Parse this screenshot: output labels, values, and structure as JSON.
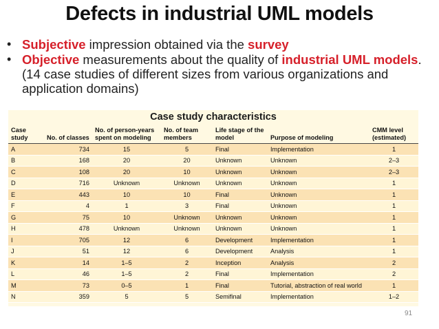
{
  "slide": {
    "title": "Defects in industrial UML models",
    "bullets": [
      {
        "parts": [
          {
            "text": "Subjective",
            "emphasis": true
          },
          {
            "text": " impression obtained via the ",
            "emphasis": false
          },
          {
            "text": "survey",
            "emphasis": true
          }
        ]
      },
      {
        "parts": [
          {
            "text": "Objective",
            "emphasis": true
          },
          {
            "text": " measurements about the quality of ",
            "emphasis": false
          },
          {
            "text": "industrial UML models",
            "emphasis": true
          },
          {
            "text": ". (14 case studies of different sizes from various organizations and application domains)",
            "emphasis": false
          }
        ]
      }
    ],
    "page_number": "91"
  },
  "table": {
    "title": "Case study characteristics",
    "columns": [
      "Case study",
      "No. of classes",
      "No. of person-years spent on modeling",
      "No. of team members",
      "Life stage of the model",
      "Purpose of modeling",
      "CMM level (estimated)"
    ],
    "rows": [
      [
        "A",
        "734",
        "15",
        "5",
        "Final",
        "Implementation",
        "1"
      ],
      [
        "B",
        "168",
        "20",
        "20",
        "Unknown",
        "Unknown",
        "2–3"
      ],
      [
        "C",
        "108",
        "20",
        "10",
        "Unknown",
        "Unknown",
        "2–3"
      ],
      [
        "D",
        "716",
        "Unknown",
        "Unknown",
        "Unknown",
        "Unknown",
        "1"
      ],
      [
        "E",
        "443",
        "10",
        "10",
        "Final",
        "Unknown",
        "1"
      ],
      [
        "F",
        "4",
        "1",
        "3",
        "Final",
        "Unknown",
        "1"
      ],
      [
        "G",
        "75",
        "10",
        "Unknown",
        "Unknown",
        "Unknown",
        "1"
      ],
      [
        "H",
        "478",
        "Unknown",
        "Unknown",
        "Unknown",
        "Unknown",
        "1"
      ],
      [
        "I",
        "705",
        "12",
        "6",
        "Development",
        "Implementation",
        "1"
      ],
      [
        "J",
        "51",
        "12",
        "6",
        "Development",
        "Analysis",
        "1"
      ],
      [
        "K",
        "14",
        "1–5",
        "2",
        "Inception",
        "Analysis",
        "2"
      ],
      [
        "L",
        "46",
        "1–5",
        "2",
        "Final",
        "Implementation",
        "2"
      ],
      [
        "M",
        "73",
        "0–5",
        "1",
        "Final",
        "Tutorial, abstraction of real world",
        "1"
      ],
      [
        "N",
        "359",
        "5",
        "5",
        "Semifinal",
        "Implementation",
        "1–2"
      ]
    ]
  },
  "colors": {
    "accent_red": "#d6202a",
    "table_bg": "#fff9e2",
    "row_odd": "#fbe2b4",
    "row_even": "#fff5d6"
  }
}
